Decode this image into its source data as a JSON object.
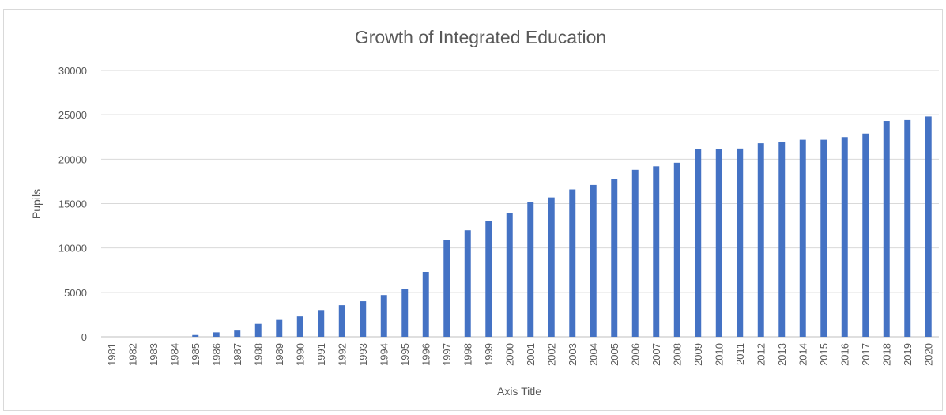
{
  "chart_data": {
    "type": "bar",
    "title": "Growth of Integrated Education",
    "xlabel": "Axis Title",
    "ylabel": "Pupils",
    "ylim": [
      0,
      30000
    ],
    "yticks": [
      "0",
      "5000",
      "10000",
      "15000",
      "20000",
      "25000",
      "30000"
    ],
    "grid": true,
    "bar_color": "#4472c4",
    "categories": [
      "1981",
      "1982",
      "1983",
      "1984",
      "1985",
      "1986",
      "1987",
      "1988",
      "1989",
      "1990",
      "1991",
      "1992",
      "1993",
      "1994",
      "1995",
      "1996",
      "1997",
      "1998",
      "1999",
      "2000",
      "2001",
      "2002",
      "2003",
      "2004",
      "2005",
      "2006",
      "2007",
      "2008",
      "2009",
      "2010",
      "2011",
      "2012",
      "2013",
      "2014",
      "2015",
      "2016",
      "2017",
      "2018",
      "2019",
      "2020"
    ],
    "values": [
      0,
      0,
      0,
      0,
      200,
      500,
      700,
      1450,
      1900,
      2300,
      3000,
      3550,
      4000,
      4700,
      5400,
      7300,
      10900,
      12000,
      13000,
      13950,
      15200,
      15700,
      16600,
      17100,
      17800,
      18800,
      19200,
      19600,
      21100,
      21100,
      21200,
      21800,
      21900,
      22200,
      22200,
      22500,
      22900,
      24300,
      24400,
      24800
    ]
  }
}
